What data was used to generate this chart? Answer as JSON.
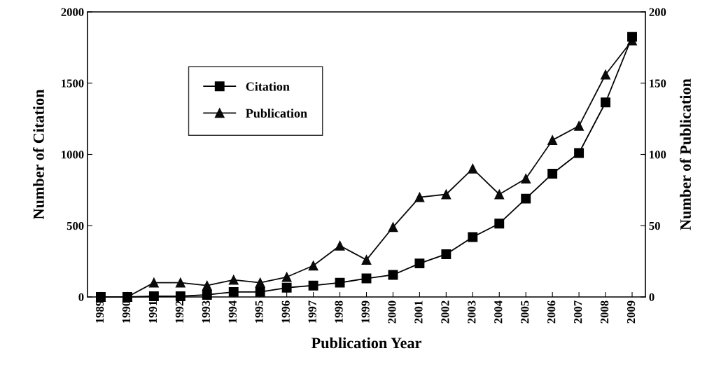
{
  "chart_data": {
    "type": "line",
    "xlabel": "Publication Year",
    "ylabel": "Number of Citation",
    "y2label": "Number of Publication",
    "categories": [
      "1989",
      "1990",
      "1991",
      "1992",
      "1993",
      "1994",
      "1995",
      "1996",
      "1997",
      "1998",
      "1999",
      "2000",
      "2001",
      "2002",
      "2003",
      "2004",
      "2005",
      "2006",
      "2007",
      "2008",
      "2009"
    ],
    "series": [
      {
        "name": "Citation",
        "color": "#000000",
        "marker": "square",
        "values": [
          0,
          0,
          5,
          5,
          15,
          35,
          35,
          65,
          80,
          100,
          130,
          155,
          235,
          300,
          420,
          515,
          690,
          865,
          1010,
          1365,
          1825
        ]
      },
      {
        "name": "Publication",
        "color": "#0a0a0a",
        "marker": "triangle",
        "axis": "y2",
        "values": [
          0,
          0,
          10,
          10,
          8,
          12,
          10,
          14,
          22,
          36,
          26,
          49,
          70,
          72,
          90,
          72,
          83,
          110,
          120,
          156,
          180
        ]
      }
    ],
    "ylim": [
      0,
      2000
    ],
    "yticks": [
      0,
      500,
      1000,
      1500,
      2000
    ],
    "y2lim": [
      0,
      200
    ],
    "y2ticks": [
      0,
      50,
      100,
      150,
      200
    ],
    "legend": "top left",
    "grid": false,
    "line_style": "solid"
  }
}
